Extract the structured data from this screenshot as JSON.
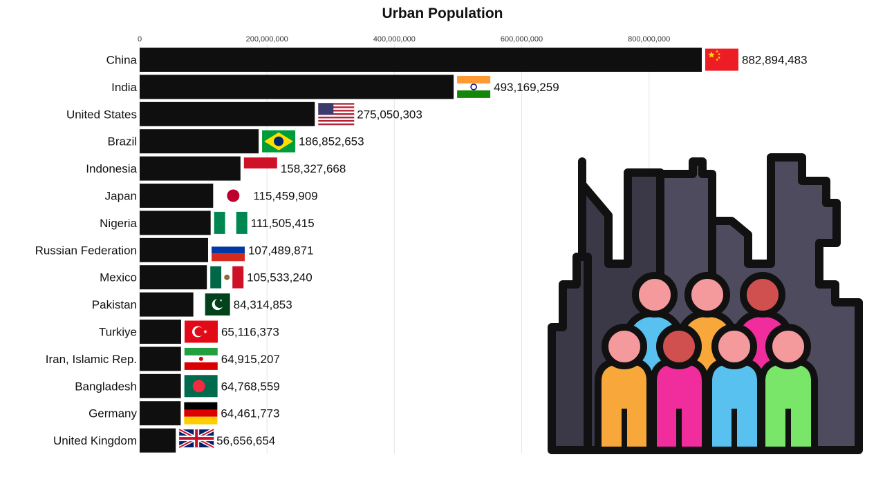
{
  "chart_data": {
    "type": "bar",
    "orientation": "horizontal",
    "title": "Urban Population",
    "xlabel": "",
    "ylabel": "",
    "xlim": [
      0,
      882894483
    ],
    "ticks": [
      {
        "value": 0,
        "label": "0"
      },
      {
        "value": 200000000,
        "label": "200,000,000"
      },
      {
        "value": 400000000,
        "label": "400,000,000"
      },
      {
        "value": 600000000,
        "label": "600,000,000"
      },
      {
        "value": 800000000,
        "label": "800,000,000"
      }
    ],
    "grid": true,
    "bar_color": "#0f0f0f",
    "categories": [
      "China",
      "India",
      "United States",
      "Brazil",
      "Indonesia",
      "Japan",
      "Nigeria",
      "Russian Federation",
      "Mexico",
      "Pakistan",
      "Turkiye",
      "Iran, Islamic Rep.",
      "Bangladesh",
      "Germany",
      "United Kingdom"
    ],
    "values": [
      882894483,
      493169259,
      275050303,
      186852653,
      158327668,
      115459909,
      111505415,
      107489871,
      105533240,
      84314853,
      65116373,
      64915207,
      64768559,
      64461773,
      56656654
    ],
    "value_labels": [
      "882,894,483",
      "493,169,259",
      "275,050,303",
      "186,852,653",
      "158,327,668",
      "115,459,909",
      "111,505,415",
      "107,489,871",
      "105,533,240",
      "84,314,853",
      "65,116,373",
      "64,915,207",
      "64,768,559",
      "64,461,773",
      "56,656,654"
    ],
    "flags": [
      "china-flag-icon",
      "india-flag-icon",
      "usa-flag-icon",
      "brazil-flag-icon",
      "indonesia-flag-icon",
      "japan-flag-icon",
      "nigeria-flag-icon",
      "russia-flag-icon",
      "mexico-flag-icon",
      "pakistan-flag-icon",
      "turkiye-flag-icon",
      "iran-flag-icon",
      "bangladesh-flag-icon",
      "germany-flag-icon",
      "uk-flag-icon"
    ]
  },
  "illustration": {
    "icon": "city-crowd-icon",
    "colors": {
      "building_dark": "#3b3848",
      "building_mid": "#4e4b5e",
      "outline": "#111111",
      "head_pink": "#f4999c",
      "head_red": "#d05050",
      "blue": "#59c1f0",
      "orange": "#f8a83a",
      "magenta": "#f12c9c",
      "green": "#79e66a"
    }
  }
}
